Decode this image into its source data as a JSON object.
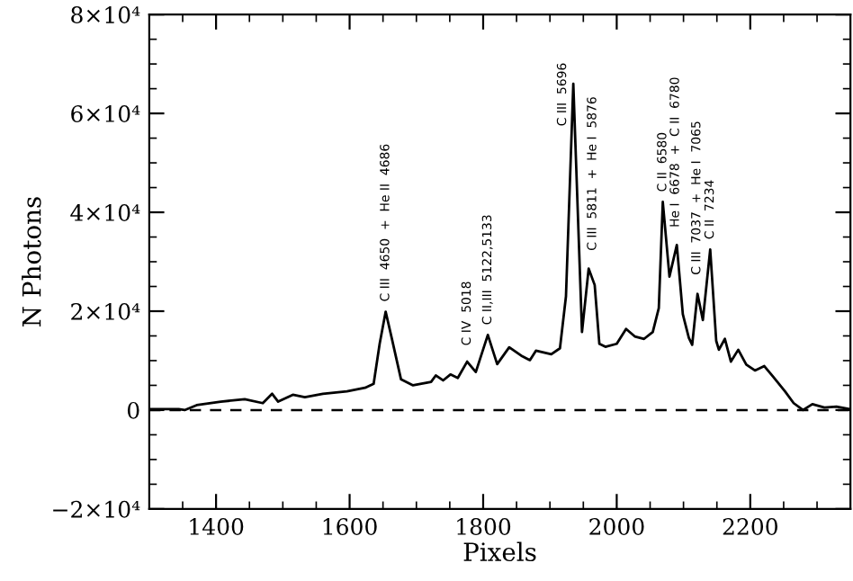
{
  "chart_data": {
    "type": "line",
    "xlabel": "Pixels",
    "ylabel": "N Photons",
    "xlim": [
      1300,
      2350
    ],
    "ylim": [
      -20000,
      80000
    ],
    "xticks": [
      {
        "value": 1350,
        "label": null
      },
      1400,
      {
        "value": 1450,
        "label": null
      },
      {
        "value": 1500,
        "label": null
      },
      {
        "value": 1550,
        "label": null
      },
      1600,
      {
        "value": 1650,
        "label": null
      },
      {
        "value": 1700,
        "label": null
      },
      {
        "value": 1750,
        "label": null
      },
      1800,
      {
        "value": 1850,
        "label": null
      },
      {
        "value": 1900,
        "label": null
      },
      {
        "value": 1950,
        "label": null
      },
      2000,
      {
        "value": 2050,
        "label": null
      },
      {
        "value": 2100,
        "label": null
      },
      {
        "value": 2150,
        "label": null
      },
      2200,
      {
        "value": 2250,
        "label": null
      },
      {
        "value": 2300,
        "label": null
      }
    ],
    "yticks": [
      {
        "value": -20000,
        "label": "−2×10⁴"
      },
      {
        "value": -15000,
        "label": null
      },
      {
        "value": -10000,
        "label": null
      },
      {
        "value": -5000,
        "label": null
      },
      {
        "value": 0,
        "label": "0"
      },
      {
        "value": 5000,
        "label": null
      },
      {
        "value": 10000,
        "label": null
      },
      {
        "value": 15000,
        "label": null
      },
      {
        "value": 20000,
        "label": "2×10⁴"
      },
      {
        "value": 25000,
        "label": null
      },
      {
        "value": 30000,
        "label": null
      },
      {
        "value": 35000,
        "label": null
      },
      {
        "value": 40000,
        "label": "4×10⁴"
      },
      {
        "value": 45000,
        "label": null
      },
      {
        "value": 50000,
        "label": null
      },
      {
        "value": 55000,
        "label": null
      },
      {
        "value": 60000,
        "label": "6×10⁴"
      },
      {
        "value": 65000,
        "label": null
      },
      {
        "value": 70000,
        "label": null
      },
      {
        "value": 75000,
        "label": null
      },
      {
        "value": 80000,
        "label": "8×10⁴"
      }
    ],
    "grid": false,
    "legend": false,
    "marker": "none",
    "line_style": "solid",
    "ref_lines": [
      {
        "axis": "y",
        "value": 0,
        "label": null,
        "color": "#000000",
        "line_style": "dashed"
      }
    ],
    "series": [
      {
        "color": "#000000",
        "x": [
          1301,
          1344,
          1353,
          1371,
          1407,
          1443,
          1470,
          1484,
          1493,
          1515,
          1533,
          1560,
          1596,
          1623,
          1636,
          1645,
          1654,
          1663,
          1677,
          1695,
          1722,
          1729,
          1740,
          1751,
          1762,
          1776,
          1789,
          1807,
          1821,
          1839,
          1857,
          1870,
          1879,
          1902,
          1915,
          1924,
          1935,
          1948,
          1958,
          1967,
          1974,
          1983,
          2000,
          2014,
          2027,
          2041,
          2054,
          2063,
          2069,
          2079,
          2090,
          2099,
          2108,
          2113,
          2121,
          2129,
          2140,
          2149,
          2153,
          2162,
          2171,
          2182,
          2194,
          2207,
          2221,
          2234,
          2252,
          2265,
          2279,
          2293,
          2311,
          2329,
          2349
        ],
        "values": [
          200,
          200,
          0,
          1000,
          1700,
          2200,
          1400,
          3300,
          1700,
          3100,
          2600,
          3300,
          3800,
          4500,
          5300,
          13400,
          19900,
          14600,
          6200,
          5000,
          5700,
          7000,
          6000,
          7200,
          6500,
          9800,
          7700,
          15200,
          9300,
          12700,
          11000,
          10100,
          12000,
          11300,
          12500,
          23000,
          66000,
          15800,
          28600,
          25300,
          13400,
          12800,
          13400,
          16400,
          14900,
          14400,
          15800,
          20600,
          42100,
          27000,
          33400,
          19400,
          14600,
          13200,
          23500,
          18200,
          32500,
          14000,
          12200,
          14400,
          9800,
          12200,
          9200,
          8000,
          8900,
          6800,
          3800,
          1400,
          0,
          1200,
          500,
          700,
          200
        ]
      }
    ],
    "annotations": [
      {
        "text": "C III  4650  +  He II  4686",
        "x": 1654,
        "y": 19900
      },
      {
        "text": "C IV  5018",
        "x": 1776,
        "y": 11000
      },
      {
        "text": "C II,III  5122,5133",
        "x": 1807,
        "y": 15200
      },
      {
        "text": "C III  5696",
        "x": 1919,
        "y": 55400
      },
      {
        "text": "C III  5811  +  He I  5876",
        "x": 1964,
        "y": 30200
      },
      {
        "text": "C II  6580",
        "x": 2069,
        "y": 42100
      },
      {
        "text": "He I  6678  +  C II  6780",
        "x": 2088,
        "y": 34900
      },
      {
        "text": "C III  7037  +  He I  7065",
        "x": 2120,
        "y": 25300
      },
      {
        "text": "C II  7234",
        "x": 2140,
        "y": 32500
      }
    ]
  }
}
